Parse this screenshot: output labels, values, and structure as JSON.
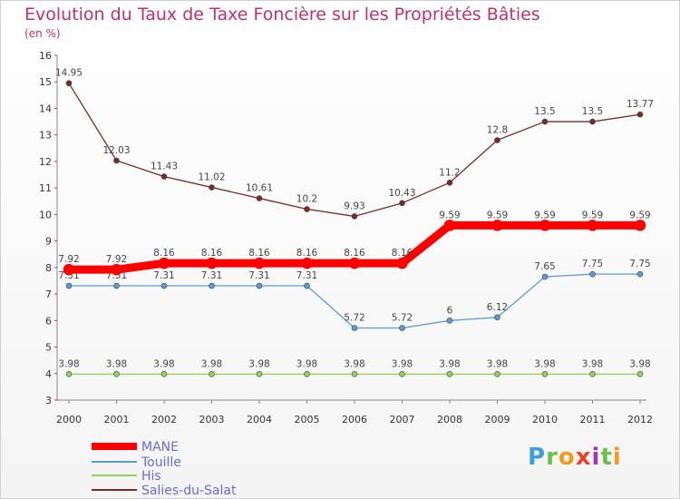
{
  "header": {
    "title": "Evolution du Taux de Taxe Foncière sur les Propriétés Bâties",
    "subtitle": "(en %)"
  },
  "logo": {
    "text": "Proxiti",
    "letters": [
      "P",
      "r",
      "o",
      "x",
      "i",
      "t",
      "i"
    ],
    "colors": [
      "#3aa0dc",
      "#6cc04a",
      "#f39a1e",
      "#e8452c",
      "#9c3bb5",
      "#6cc04a",
      "#f39a1e"
    ]
  },
  "chart_data": {
    "type": "line",
    "x": [
      "2000",
      "2001",
      "2002",
      "2003",
      "2004",
      "2005",
      "2006",
      "2007",
      "2008",
      "2009",
      "2010",
      "2011",
      "2012"
    ],
    "ylim": [
      3,
      16
    ],
    "yticks": [
      "3",
      "4",
      "5",
      "6",
      "7",
      "8",
      "9",
      "10",
      "11",
      "12",
      "13",
      "14",
      "15",
      "16"
    ],
    "grid": false,
    "legend_position": "bottom-left",
    "series": [
      {
        "name": "MANE",
        "color": "#ff0000",
        "values": [
          7.92,
          7.92,
          8.16,
          8.16,
          8.16,
          8.16,
          8.16,
          8.16,
          9.59,
          9.59,
          9.59,
          9.59,
          9.59
        ],
        "labels": [
          "7.92",
          "7.92",
          "8.16",
          "8.16",
          "8.16",
          "8.16",
          "8.16",
          "8.16",
          "9.59",
          "9.59",
          "9.59",
          "9.59",
          "9.59"
        ]
      },
      {
        "name": "Touille",
        "color": "#5b9bd5",
        "values": [
          7.31,
          7.31,
          7.31,
          7.31,
          7.31,
          7.31,
          5.72,
          5.72,
          6,
          6.12,
          7.65,
          7.75,
          7.75
        ],
        "labels": [
          "7.31",
          "7.31",
          "7.31",
          "7.31",
          "7.31",
          "7.31",
          "5.72",
          "5.72",
          "6",
          "6.12",
          "7.65",
          "7.75",
          "7.75"
        ]
      },
      {
        "name": "His",
        "color": "#8fd35b",
        "values": [
          3.98,
          3.98,
          3.98,
          3.98,
          3.98,
          3.98,
          3.98,
          3.98,
          3.98,
          3.98,
          3.98,
          3.98,
          3.98
        ],
        "labels": [
          "3.98",
          "3.98",
          "3.98",
          "3.98",
          "3.98",
          "3.98",
          "3.98",
          "3.98",
          "3.98",
          "3.98",
          "3.98",
          "3.98",
          "3.98"
        ]
      },
      {
        "name": "Salies-du-Salat",
        "color": "#7a2a2a",
        "values": [
          14.95,
          12.03,
          11.43,
          11.02,
          10.61,
          10.2,
          9.93,
          10.43,
          11.2,
          12.8,
          13.5,
          13.5,
          13.77
        ],
        "labels": [
          "14.95",
          "12.03",
          "11.43",
          "11.02",
          "10.61",
          "10.2",
          "9.93",
          "10.43",
          "11.2",
          "12.8",
          "13.5",
          "13.5",
          "13.77"
        ]
      }
    ]
  }
}
